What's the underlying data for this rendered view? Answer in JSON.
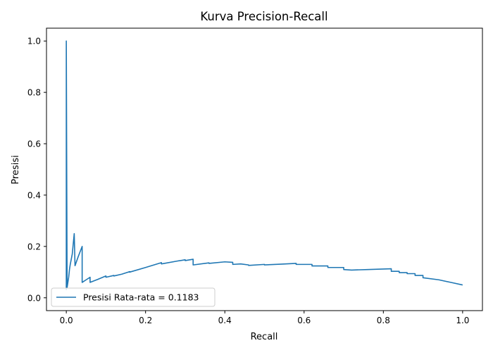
{
  "chart_data": {
    "type": "line",
    "title": "Kurva Precision-Recall",
    "xlabel": "Recall",
    "ylabel": "Presisi",
    "xlim": [
      -0.05,
      1.05
    ],
    "ylim": [
      -0.05,
      1.05
    ],
    "xticks": [
      0.0,
      0.2,
      0.4,
      0.6,
      0.8,
      1.0
    ],
    "xtick_labels": [
      "0.0",
      "0.2",
      "0.4",
      "0.6",
      "0.8",
      "1.0"
    ],
    "yticks": [
      0.0,
      0.2,
      0.4,
      0.6,
      0.8,
      1.0
    ],
    "ytick_labels": [
      "0.0",
      "0.2",
      "0.4",
      "0.6",
      "0.8",
      "1.0"
    ],
    "grid": false,
    "legend": {
      "location": "lower-left"
    },
    "series": [
      {
        "name": "Presisi Rata-rata = 0.1183",
        "color": "#1f77b4",
        "x": [
          0.0,
          0.0,
          0.002,
          0.004,
          0.006,
          0.008,
          0.01,
          0.015,
          0.02,
          0.022,
          0.03,
          0.04,
          0.04,
          0.05,
          0.06,
          0.06,
          0.08,
          0.1,
          0.1,
          0.12,
          0.12,
          0.14,
          0.16,
          0.16,
          0.2,
          0.24,
          0.24,
          0.28,
          0.3,
          0.3,
          0.32,
          0.32,
          0.36,
          0.36,
          0.4,
          0.42,
          0.42,
          0.44,
          0.46,
          0.46,
          0.5,
          0.5,
          0.54,
          0.58,
          0.58,
          0.62,
          0.62,
          0.66,
          0.66,
          0.7,
          0.7,
          0.72,
          0.76,
          0.82,
          0.82,
          0.84,
          0.84,
          0.86,
          0.86,
          0.88,
          0.88,
          0.9,
          0.9,
          0.94,
          0.97,
          1.0
        ],
        "y": [
          0.03,
          1.0,
          0.04,
          0.06,
          0.08,
          0.11,
          0.13,
          0.17,
          0.25,
          0.125,
          0.16,
          0.2,
          0.06,
          0.07,
          0.08,
          0.06,
          0.072,
          0.085,
          0.08,
          0.087,
          0.085,
          0.092,
          0.102,
          0.1,
          0.118,
          0.137,
          0.132,
          0.143,
          0.148,
          0.145,
          0.15,
          0.128,
          0.136,
          0.134,
          0.14,
          0.138,
          0.13,
          0.132,
          0.128,
          0.126,
          0.13,
          0.128,
          0.131,
          0.134,
          0.13,
          0.13,
          0.124,
          0.124,
          0.118,
          0.118,
          0.11,
          0.108,
          0.11,
          0.113,
          0.103,
          0.103,
          0.098,
          0.098,
          0.094,
          0.094,
          0.087,
          0.087,
          0.078,
          0.07,
          0.06,
          0.05
        ]
      }
    ]
  }
}
